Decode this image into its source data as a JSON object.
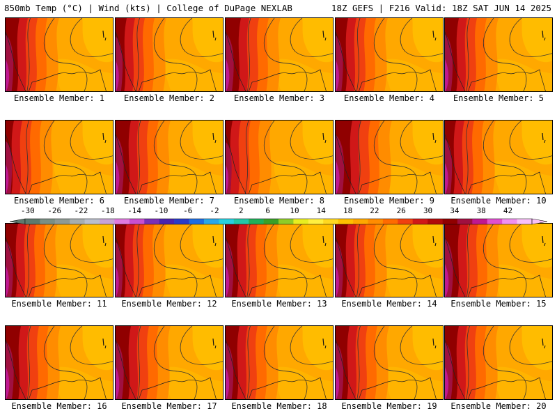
{
  "header": {
    "left": "850mb Temp (°C) | Wind (kts) | College of DuPage NEXLAB",
    "right": "18Z GEFS | F216 Valid: 18Z SAT JUN 14 2025"
  },
  "panels": [
    {
      "label": "Ensemble Member: 1",
      "hot": 0.55
    },
    {
      "label": "Ensemble Member: 2",
      "hot": 0.45
    },
    {
      "label": "Ensemble Member: 3",
      "hot": 0.6
    },
    {
      "label": "Ensemble Member: 4",
      "hot": 0.5
    },
    {
      "label": "Ensemble Member: 5",
      "hot": 0.55
    },
    {
      "label": "Ensemble Member: 6",
      "hot": 0.35
    },
    {
      "label": "Ensemble Member: 7",
      "hot": 0.6
    },
    {
      "label": "Ensemble Member: 8",
      "hot": 0.3
    },
    {
      "label": "Ensemble Member: 9",
      "hot": 0.65
    },
    {
      "label": "Ensemble Member: 10",
      "hot": 0.45
    },
    {
      "label": "Ensemble Member: 11",
      "hot": 0.5
    },
    {
      "label": "Ensemble Member: 12",
      "hot": 0.45
    },
    {
      "label": "Ensemble Member: 13",
      "hot": 0.55
    },
    {
      "label": "Ensemble Member: 14",
      "hot": 0.5
    },
    {
      "label": "Ensemble Member: 15",
      "hot": 0.6
    },
    {
      "label": "Ensemble Member: 16",
      "hot": 0.6
    },
    {
      "label": "Ensemble Member: 17",
      "hot": 0.6
    },
    {
      "label": "Ensemble Member: 18",
      "hot": 0.55
    },
    {
      "label": "Ensemble Member: 19",
      "hot": 0.55
    },
    {
      "label": "Ensemble Member: 20",
      "hot": 0.55
    }
  ],
  "colorbar": {
    "labels": [
      "-30",
      "-26",
      "-22",
      "-18",
      "-14",
      "-10",
      "-6",
      "-2",
      "2",
      "6",
      "10",
      "14",
      "18",
      "22",
      "26",
      "30",
      "34",
      "38",
      "42"
    ],
    "colors": [
      "#5e7a6e",
      "#7a8f84",
      "#8e9a94",
      "#a6aeb0",
      "#b9bfcc",
      "#c7a3d6",
      "#e07ae0",
      "#c94fd0",
      "#7a2fb8",
      "#4a24b0",
      "#2a3cc8",
      "#1f6ee0",
      "#2aa8e8",
      "#28d0e0",
      "#22c8a8",
      "#20b05a",
      "#3aa028",
      "#8fcc28",
      "#e8ee20",
      "#fff040",
      "#ffd820",
      "#ffc000",
      "#ffa800",
      "#ff8c00",
      "#ff6a00",
      "#f04010",
      "#d01818",
      "#b00a0a",
      "#900000",
      "#a01040",
      "#c01890",
      "#e050d0",
      "#f090f0",
      "#f8c0f8"
    ]
  }
}
